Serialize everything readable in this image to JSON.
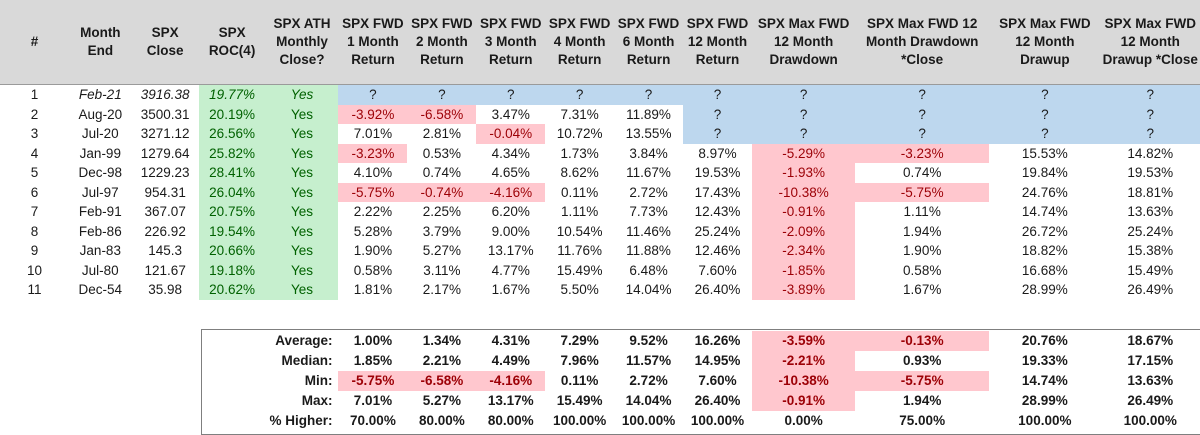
{
  "headers": [
    "#",
    "Month End",
    "SPX Close",
    "SPX ROC(4)",
    "SPX ATH Monthly Close?",
    "SPX FWD 1 Month Return",
    "SPX FWD 2 Month Return",
    "SPX FWD 3 Month Return",
    "SPX FWD 4 Month Return",
    "SPX FWD 6 Month Return",
    "SPX FWD 12 Month Return",
    "SPX Max FWD 12 Month Drawdown",
    "SPX Max FWD 12 Month Drawdown *Close",
    "SPX Max FWD 12 Month Drawup",
    "SPX Max FWD 12 Month Drawup *Close"
  ],
  "rows": [
    {
      "cells": [
        "1",
        "Feb-21",
        "3916.38",
        "19.77%",
        "Yes",
        "?",
        "?",
        "?",
        "?",
        "?",
        "?",
        "?",
        "?",
        "?",
        "?"
      ]
    },
    {
      "cells": [
        "2",
        "Aug-20",
        "3500.31",
        "20.19%",
        "Yes",
        "-3.92%",
        "-6.58%",
        "3.47%",
        "7.31%",
        "11.89%",
        "?",
        "?",
        "?",
        "?",
        "?"
      ]
    },
    {
      "cells": [
        "3",
        "Jul-20",
        "3271.12",
        "26.56%",
        "Yes",
        "7.01%",
        "2.81%",
        "-0.04%",
        "10.72%",
        "13.55%",
        "?",
        "?",
        "?",
        "?",
        "?"
      ]
    },
    {
      "cells": [
        "4",
        "Jan-99",
        "1279.64",
        "25.82%",
        "Yes",
        "-3.23%",
        "0.53%",
        "4.34%",
        "1.73%",
        "3.84%",
        "8.97%",
        "-5.29%",
        "-3.23%",
        "15.53%",
        "14.82%"
      ]
    },
    {
      "cells": [
        "5",
        "Dec-98",
        "1229.23",
        "28.41%",
        "Yes",
        "4.10%",
        "0.74%",
        "4.65%",
        "8.62%",
        "11.67%",
        "19.53%",
        "-1.93%",
        "0.74%",
        "19.84%",
        "19.53%"
      ]
    },
    {
      "cells": [
        "6",
        "Jul-97",
        "954.31",
        "26.04%",
        "Yes",
        "-5.75%",
        "-0.74%",
        "-4.16%",
        "0.11%",
        "2.72%",
        "17.43%",
        "-10.38%",
        "-5.75%",
        "24.76%",
        "18.81%"
      ]
    },
    {
      "cells": [
        "7",
        "Feb-91",
        "367.07",
        "20.75%",
        "Yes",
        "2.22%",
        "2.25%",
        "6.20%",
        "1.11%",
        "7.73%",
        "12.43%",
        "-0.91%",
        "1.11%",
        "14.74%",
        "13.63%"
      ]
    },
    {
      "cells": [
        "8",
        "Feb-86",
        "226.92",
        "19.54%",
        "Yes",
        "5.28%",
        "3.79%",
        "9.00%",
        "10.54%",
        "11.46%",
        "25.24%",
        "-2.09%",
        "1.94%",
        "26.72%",
        "25.24%"
      ]
    },
    {
      "cells": [
        "9",
        "Jan-83",
        "145.3",
        "20.66%",
        "Yes",
        "1.90%",
        "5.27%",
        "13.17%",
        "11.76%",
        "11.88%",
        "12.46%",
        "-2.34%",
        "1.90%",
        "18.82%",
        "15.38%"
      ]
    },
    {
      "cells": [
        "10",
        "Jul-80",
        "121.67",
        "19.18%",
        "Yes",
        "0.58%",
        "3.11%",
        "4.77%",
        "15.49%",
        "6.48%",
        "7.60%",
        "-1.85%",
        "0.58%",
        "16.68%",
        "15.49%"
      ]
    },
    {
      "cells": [
        "11",
        "Dec-54",
        "35.98",
        "20.62%",
        "Yes",
        "1.81%",
        "2.17%",
        "1.67%",
        "5.50%",
        "14.04%",
        "26.40%",
        "-3.89%",
        "1.67%",
        "28.99%",
        "26.49%"
      ]
    }
  ],
  "summary": [
    {
      "label": "Average:",
      "values": [
        "1.00%",
        "1.34%",
        "4.31%",
        "7.29%",
        "9.52%",
        "16.26%",
        "-3.59%",
        "-0.13%",
        "20.76%",
        "18.67%"
      ]
    },
    {
      "label": "Median:",
      "values": [
        "1.85%",
        "2.21%",
        "4.49%",
        "7.96%",
        "11.57%",
        "14.95%",
        "-2.21%",
        "0.93%",
        "19.33%",
        "17.15%"
      ]
    },
    {
      "label": "Min:",
      "values": [
        "-5.75%",
        "-6.58%",
        "-4.16%",
        "0.11%",
        "2.72%",
        "7.60%",
        "-10.38%",
        "-5.75%",
        "14.74%",
        "13.63%"
      ]
    },
    {
      "label": "Max:",
      "values": [
        "7.01%",
        "5.27%",
        "13.17%",
        "15.49%",
        "14.04%",
        "26.40%",
        "-0.91%",
        "1.94%",
        "28.99%",
        "26.49%"
      ]
    },
    {
      "label": "% Higher:",
      "values": [
        "70.00%",
        "80.00%",
        "80.00%",
        "100.00%",
        "100.00%",
        "100.00%",
        "0.00%",
        "75.00%",
        "100.00%",
        "100.00%"
      ]
    }
  ],
  "colors": {
    "header_bg": "#d9d9d9",
    "positive_fill": "#c6efce",
    "positive_text": "#006100",
    "negative_fill": "#ffc7ce",
    "negative_text": "#9c0006",
    "pending_fill": "#bdd7ee"
  }
}
